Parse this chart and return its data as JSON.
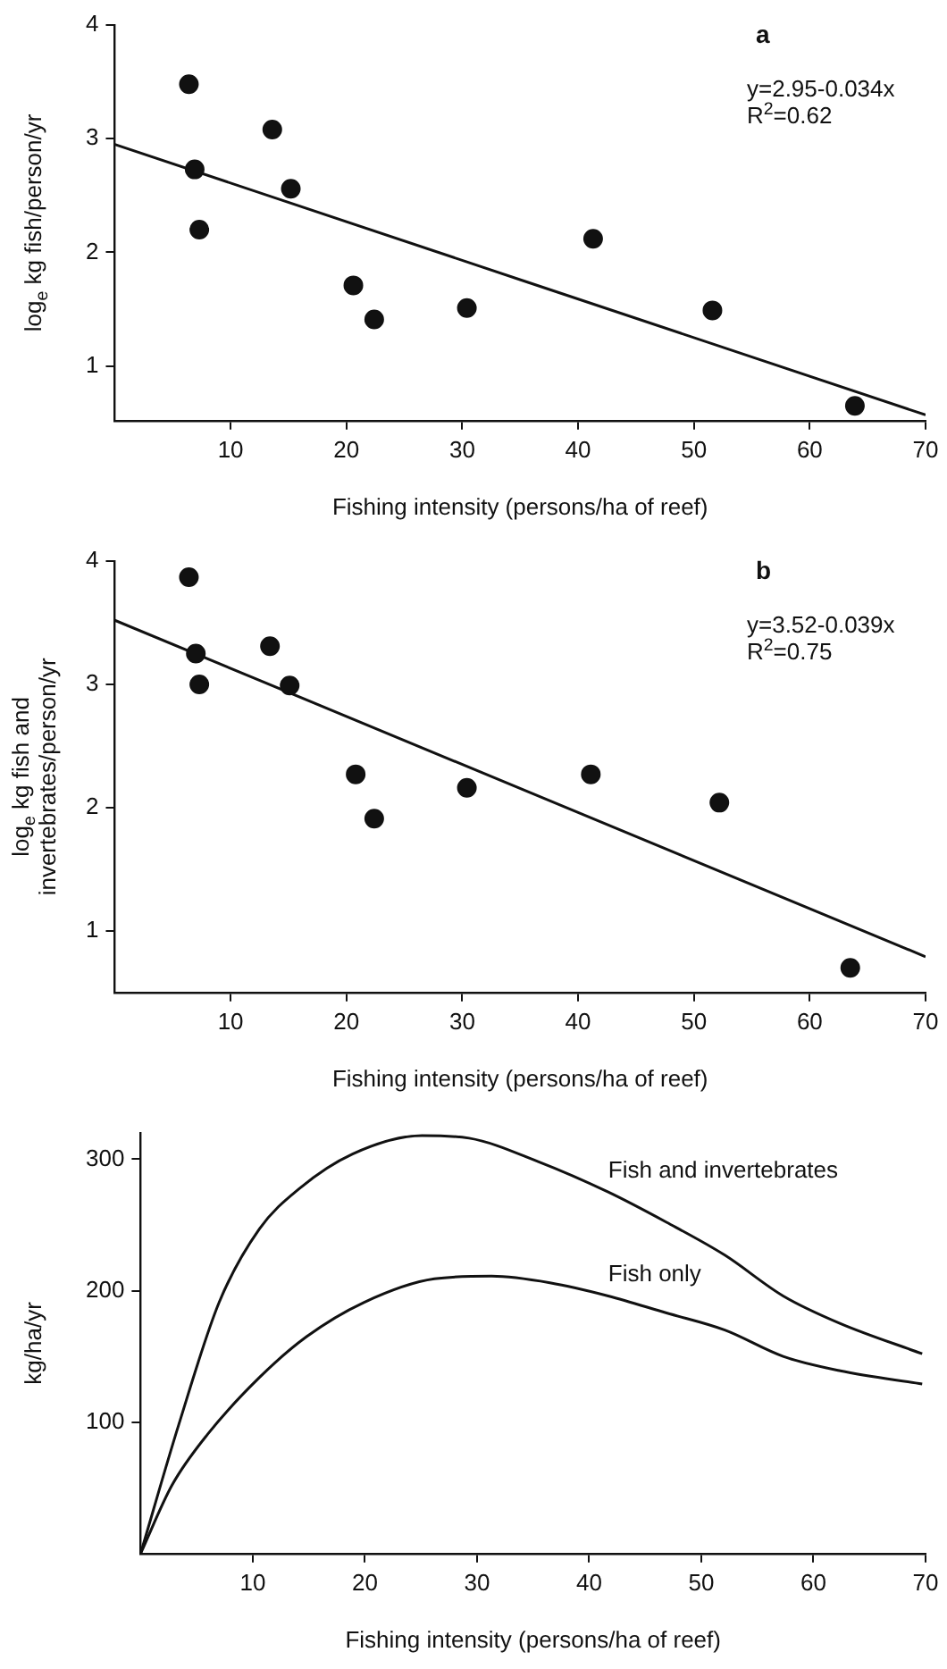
{
  "chart_data": [
    {
      "type": "scatter",
      "title": "a",
      "xlabel": "Fishing intensity (persons/ha of reef)",
      "ylabel": "log$_{e}$ kg fish/person/yr",
      "annotations": [
        "y=2.95-0.034x",
        "R$^{2}$=0.62"
      ],
      "xlim": [
        0,
        70
      ],
      "ylim": [
        0.52,
        4
      ],
      "xticks": [
        10,
        20,
        30,
        40,
        50,
        60,
        70
      ],
      "yticks": [
        1,
        2,
        3,
        4
      ],
      "series": [
        {
          "marker": "circle",
          "color": "#111111",
          "x": [
            6.4,
            6.9,
            7.3,
            13.6,
            15.2,
            20.6,
            22.4,
            30.4,
            41.3,
            51.6,
            63.9
          ],
          "values": [
            3.48,
            2.73,
            2.2,
            3.08,
            2.56,
            1.71,
            1.41,
            1.51,
            2.12,
            1.49,
            0.65
          ]
        },
        {
          "type": "line",
          "color": "#111111",
          "x": [
            0,
            70
          ],
          "values": [
            2.95,
            0.57
          ]
        }
      ]
    },
    {
      "type": "scatter",
      "title": "b",
      "xlabel": "Fishing intensity (persons/ha of reef)",
      "ylabel": "log$_{e}$ kg fish and invertebrates/person/yr",
      "annotations": [
        "y=3.52-0.039x",
        "R$^{2}$=0.75"
      ],
      "xlim": [
        0,
        70
      ],
      "ylim": [
        0.5,
        4
      ],
      "xticks": [
        10,
        20,
        30,
        40,
        50,
        60,
        70
      ],
      "yticks": [
        1,
        2,
        3,
        4
      ],
      "series": [
        {
          "marker": "circle",
          "color": "#111111",
          "x": [
            6.4,
            7.0,
            7.3,
            13.4,
            15.1,
            20.8,
            22.4,
            30.4,
            41.1,
            52.2,
            63.5
          ],
          "values": [
            3.87,
            3.25,
            3.0,
            3.31,
            2.99,
            2.27,
            1.91,
            2.16,
            2.27,
            2.04,
            0.7
          ]
        },
        {
          "type": "line",
          "color": "#111111",
          "x": [
            0,
            70
          ],
          "values": [
            3.52,
            0.79
          ]
        }
      ]
    },
    {
      "type": "line",
      "xlabel": "Fishing intensity (persons/ha of reef)",
      "ylabel": "kg/ha/yr",
      "xlim": [
        0,
        70
      ],
      "ylim": [
        0,
        320
      ],
      "xticks": [
        10,
        20,
        30,
        40,
        50,
        60,
        70
      ],
      "yticks": [
        100,
        200,
        300
      ],
      "series": [
        {
          "name": "Fish and invertebrates",
          "color": "#111111",
          "x": [
            0,
            3.4,
            7,
            10.6,
            14.2,
            18.9,
            25.1,
            29.3,
            35.5,
            41.7,
            46.9,
            52.1,
            57.3,
            62.4,
            69.7
          ],
          "values": [
            0,
            98,
            191,
            247,
            278,
            304,
            318,
            316,
            298,
            275,
            252,
            227,
            196,
            175,
            152
          ]
        },
        {
          "name": "Fish only",
          "color": "#111111",
          "x": [
            0,
            2.8,
            6,
            10.6,
            14.8,
            19.9,
            26.2,
            31.3,
            36.5,
            41.7,
            46.9,
            52.1,
            57.3,
            62.4,
            69.7
          ],
          "values": [
            0,
            52,
            91,
            134,
            165,
            191,
            209,
            211,
            206,
            196,
            183,
            170,
            150,
            139,
            129
          ]
        }
      ]
    }
  ]
}
